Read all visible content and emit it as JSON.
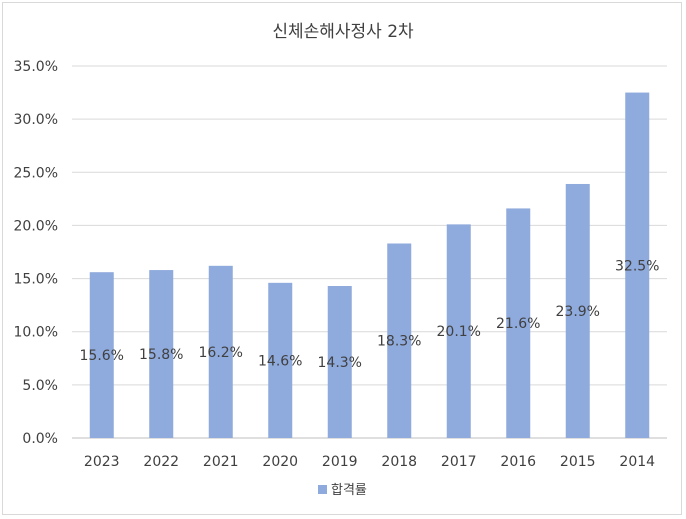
{
  "chart_data": {
    "type": "bar",
    "title": "신체손해사정사 2차",
    "categories": [
      "2023",
      "2022",
      "2021",
      "2020",
      "2019",
      "2018",
      "2017",
      "2016",
      "2015",
      "2014"
    ],
    "series": [
      {
        "name": "합격률",
        "values": [
          15.6,
          15.8,
          16.2,
          14.6,
          14.3,
          18.3,
          20.1,
          21.6,
          23.9,
          32.5
        ],
        "data_labels": [
          "15.6%",
          "15.8%",
          "16.2%",
          "14.6%",
          "14.3%",
          "18.3%",
          "20.1%",
          "21.6%",
          "23.9%",
          "32.5%"
        ],
        "color": "#8faadc"
      }
    ],
    "ylim": [
      0,
      35
    ],
    "yticks": [
      0,
      5,
      10,
      15,
      20,
      25,
      30,
      35
    ],
    "ytick_labels": [
      "0.0%",
      "5.0%",
      "10.0%",
      "15.0%",
      "20.0%",
      "25.0%",
      "30.0%",
      "35.0%"
    ],
    "grid": true,
    "legend_position": "bottom"
  }
}
